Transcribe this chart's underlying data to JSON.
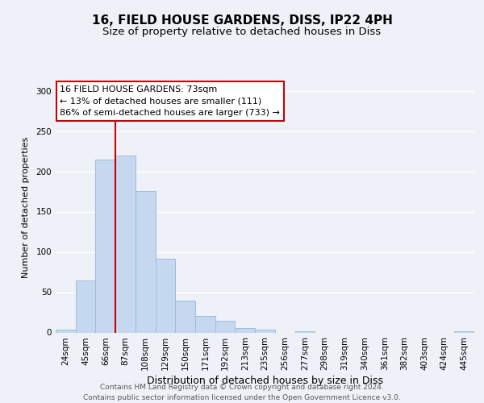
{
  "title": "16, FIELD HOUSE GARDENS, DISS, IP22 4PH",
  "subtitle": "Size of property relative to detached houses in Diss",
  "xlabel": "Distribution of detached houses by size in Diss",
  "ylabel": "Number of detached properties",
  "bar_labels": [
    "24sqm",
    "45sqm",
    "66sqm",
    "87sqm",
    "108sqm",
    "129sqm",
    "150sqm",
    "171sqm",
    "192sqm",
    "213sqm",
    "235sqm",
    "256sqm",
    "277sqm",
    "298sqm",
    "319sqm",
    "340sqm",
    "361sqm",
    "382sqm",
    "403sqm",
    "424sqm",
    "445sqm"
  ],
  "bar_values": [
    4,
    65,
    215,
    220,
    176,
    92,
    40,
    21,
    15,
    6,
    4,
    0,
    2,
    0,
    0,
    0,
    0,
    0,
    0,
    0,
    2
  ],
  "bar_color": "#c5d8f0",
  "bar_edge_color": "#a0bcd8",
  "vline_x_index": 2,
  "vline_color": "#cc0000",
  "ylim": [
    0,
    310
  ],
  "yticks": [
    0,
    50,
    100,
    150,
    200,
    250,
    300
  ],
  "annotation_box_text": "16 FIELD HOUSE GARDENS: 73sqm\n← 13% of detached houses are smaller (111)\n86% of semi-detached houses are larger (733) →",
  "annotation_box_color": "#ffffff",
  "annotation_box_edge_color": "#cc0000",
  "footer_line1": "Contains HM Land Registry data © Crown copyright and database right 2024.",
  "footer_line2": "Contains public sector information licensed under the Open Government Licence v3.0.",
  "background_color": "#eef2f8",
  "plot_bg_color": "#eef2f8",
  "grid_color": "#ffffff",
  "title_fontsize": 11,
  "subtitle_fontsize": 9.5,
  "xlabel_fontsize": 9,
  "ylabel_fontsize": 8,
  "tick_fontsize": 7.5,
  "footer_fontsize": 6.5,
  "annotation_fontsize": 8
}
